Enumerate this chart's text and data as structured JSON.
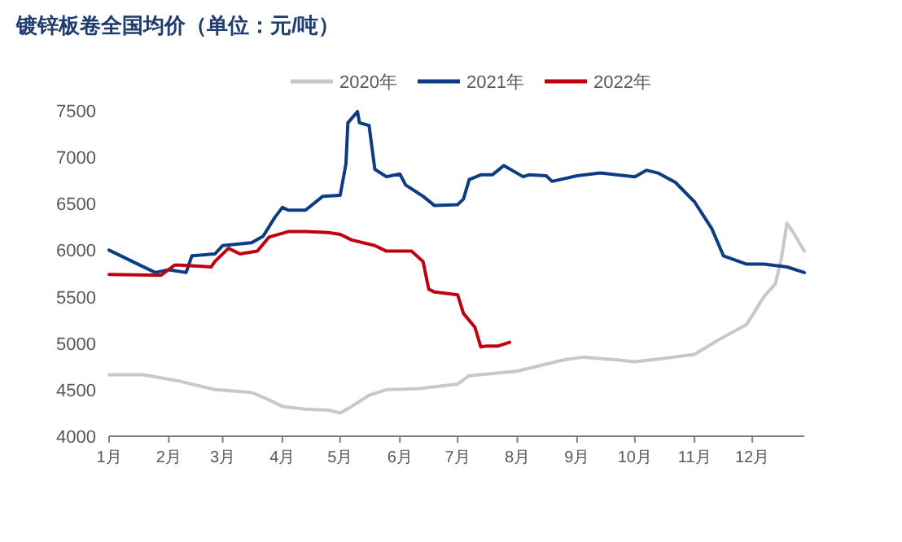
{
  "chart_data": {
    "type": "line",
    "title": "镀锌板卷全国均价（单位：元/吨）",
    "xlim": [
      "--01-01",
      "--12-28"
    ],
    "xticks": [
      {
        "value": "--01-01",
        "label": "1月"
      },
      {
        "value": "--02-01",
        "label": "2月"
      },
      {
        "value": "--03-01",
        "label": "3月"
      },
      {
        "value": "--04-01",
        "label": "4月"
      },
      {
        "value": "--05-01",
        "label": "5月"
      },
      {
        "value": "--06-01",
        "label": "6月"
      },
      {
        "value": "--07-01",
        "label": "7月"
      },
      {
        "value": "--08-01",
        "label": "8月"
      },
      {
        "value": "--09-01",
        "label": "9月"
      },
      {
        "value": "--10-01",
        "label": "10月"
      },
      {
        "value": "--11-01",
        "label": "11月"
      },
      {
        "value": "--12-01",
        "label": "12月"
      }
    ],
    "ylim": [
      4000,
      7500
    ],
    "yticks": [
      4000,
      4500,
      5000,
      5500,
      6000,
      6500,
      7000,
      7500
    ],
    "grid": false,
    "legend": "top",
    "marker": "none",
    "line_style": "solid",
    "series": [
      {
        "name": "2020年",
        "color": "#c8c8c8",
        "x": [
          "--01-01",
          "--01-19",
          "--02-07",
          "--02-25",
          "--03-16",
          "--03-25",
          "--04-01",
          "--04-13",
          "--04-25",
          "--05-01",
          "--05-07",
          "--05-16",
          "--05-25",
          "--06-10",
          "--07-01",
          "--07-07",
          "--08-01",
          "--08-25",
          "--09-04",
          "--09-22",
          "--10-01",
          "--10-13",
          "--11-01",
          "--11-13",
          "--11-28",
          "--12-07",
          "--12-13",
          "--12-16",
          "--12-19",
          "--12-22",
          "--12-28"
        ],
        "values": [
          4660,
          4660,
          4590,
          4500,
          4470,
          4390,
          4320,
          4290,
          4280,
          4250,
          4320,
          4440,
          4500,
          4510,
          4560,
          4650,
          4700,
          4820,
          4850,
          4820,
          4800,
          4830,
          4880,
          5030,
          5200,
          5500,
          5640,
          5900,
          6290,
          6200,
          5990
        ]
      },
      {
        "name": "2021年",
        "color": "#0c3c84",
        "x": [
          "--01-01",
          "--01-16",
          "--01-25",
          "--02-01",
          "--02-10",
          "--02-13",
          "--02-25",
          "--03-01",
          "--03-16",
          "--03-22",
          "--03-28",
          "--04-01",
          "--04-04",
          "--04-07",
          "--04-13",
          "--04-22",
          "--05-01",
          "--05-04",
          "--05-05",
          "--05-10",
          "--05-11",
          "--05-16",
          "--05-19",
          "--05-25",
          "--06-01",
          "--06-04",
          "--06-13",
          "--06-19",
          "--07-01",
          "--07-04",
          "--07-07",
          "--07-13",
          "--07-19",
          "--07-25",
          "--08-04",
          "--08-07",
          "--08-16",
          "--08-19",
          "--09-01",
          "--09-13",
          "--10-01",
          "--10-07",
          "--10-13",
          "--10-22",
          "--11-01",
          "--11-10",
          "--11-16",
          "--11-28",
          "--12-07",
          "--12-19",
          "--12-28"
        ],
        "values": [
          6000,
          5850,
          5760,
          5790,
          5760,
          5940,
          5960,
          6050,
          6080,
          6150,
          6350,
          6460,
          6430,
          6430,
          6430,
          6580,
          6590,
          6930,
          7370,
          7490,
          7370,
          7340,
          6870,
          6790,
          6820,
          6700,
          6580,
          6480,
          6490,
          6550,
          6760,
          6810,
          6810,
          6910,
          6790,
          6810,
          6800,
          6740,
          6800,
          6830,
          6790,
          6860,
          6830,
          6730,
          6520,
          6230,
          5940,
          5850,
          5850,
          5820,
          5760
        ]
      },
      {
        "name": "2022年",
        "color": "#c0000e",
        "x": [
          "--01-01",
          "--01-28",
          "--02-04",
          "--02-07",
          "--02-23",
          "--02-25",
          "--03-04",
          "--03-10",
          "--03-19",
          "--03-25",
          "--04-04",
          "--04-13",
          "--04-25",
          "--05-01",
          "--05-07",
          "--05-19",
          "--05-25",
          "--06-07",
          "--06-13",
          "--06-16",
          "--06-19",
          "--07-01",
          "--07-04",
          "--07-10",
          "--07-13",
          "--07-16",
          "--07-22",
          "--07-28"
        ],
        "values": [
          5740,
          5730,
          5840,
          5840,
          5820,
          5880,
          6020,
          5960,
          5990,
          6140,
          6200,
          6200,
          6190,
          6170,
          6110,
          6050,
          5990,
          5990,
          5880,
          5580,
          5550,
          5520,
          5320,
          5170,
          4960,
          4970,
          4970,
          5010
        ]
      }
    ]
  }
}
